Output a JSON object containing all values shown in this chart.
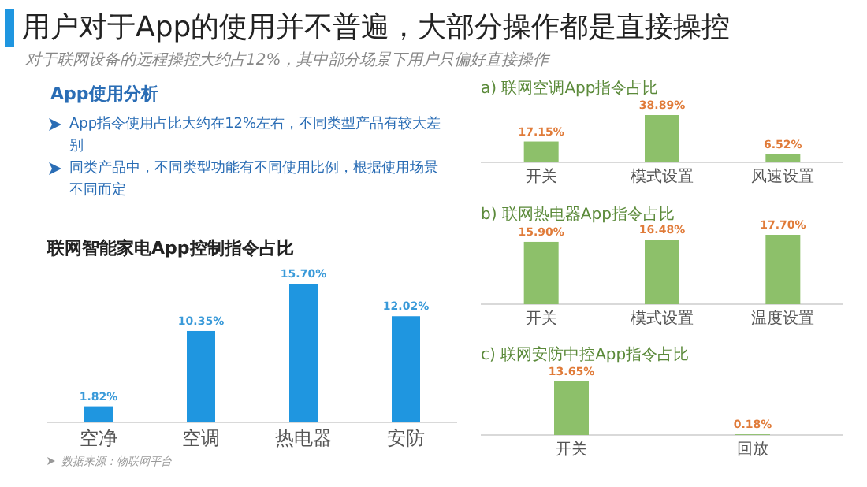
{
  "chart_data": [
    {
      "type": "other",
      "title": "用户对于App的使用并不普遍，大部分操作都是直接操控",
      "subtitle": "对于联网设备的远程操控大约占12%，其中部分场景下用户只偏好直接操作",
      "annotations": [
        "App使用分析",
        "App指令使用占比大约在12%左右，不同类型产品有较大差别",
        "同类产品中，不同类型功能有不同使用比例，根据使用场景不同而定"
      ]
    },
    {
      "type": "bar",
      "title": "联网智能家电App控制指令占比",
      "categories": [
        "空净",
        "空调",
        "热电器",
        "安防"
      ],
      "values": [
        1.82,
        10.35,
        15.7,
        12.02
      ],
      "value_labels": [
        "1.82%",
        "10.35%",
        "15.70%",
        "12.02%"
      ],
      "color": "#1f96e0",
      "annotations": [
        "数据来源：物联网平台"
      ]
    },
    {
      "type": "bar",
      "title": "a) 联网空调App指令占比",
      "categories": [
        "开关",
        "模式设置",
        "风速设置"
      ],
      "values": [
        17.15,
        38.89,
        6.52
      ],
      "value_labels": [
        "17.15%",
        "38.89%",
        "6.52%"
      ],
      "color": "#8dc06a"
    },
    {
      "type": "bar",
      "title": "b) 联网热电器App指令占比",
      "categories": [
        "开关",
        "模式设置",
        "温度设置"
      ],
      "values": [
        15.9,
        16.48,
        17.7
      ],
      "value_labels": [
        "15.90%",
        "16.48%",
        "17.70%"
      ],
      "color": "#8dc06a"
    },
    {
      "type": "bar",
      "title": "c) 联网安防中控App指令占比",
      "categories": [
        "开关",
        "回放"
      ],
      "values": [
        13.65,
        0.18
      ],
      "value_labels": [
        "13.65%",
        "0.18%"
      ],
      "color": "#8dc06a"
    }
  ]
}
